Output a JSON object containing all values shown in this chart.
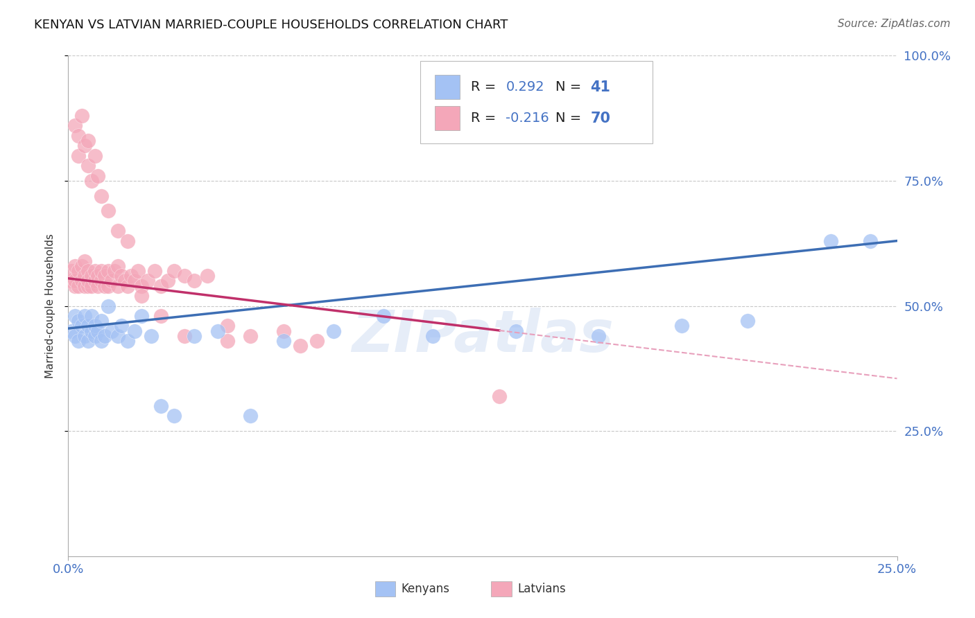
{
  "title": "KENYAN VS LATVIAN MARRIED-COUPLE HOUSEHOLDS CORRELATION CHART",
  "source": "Source: ZipAtlas.com",
  "ylabel": "Married-couple Households",
  "xlim": [
    0.0,
    0.25
  ],
  "ylim": [
    0.0,
    1.0
  ],
  "kenyan_R": "0.292",
  "kenyan_N": "41",
  "latvian_R": "-0.216",
  "latvian_N": "70",
  "kenyan_fill": "#a4c2f4",
  "latvian_fill": "#f4a7b9",
  "kenyan_line": "#3d6eb4",
  "latvian_line": "#c0306a",
  "latvian_dash": "#e8a0bc",
  "accent_color": "#4472c4",
  "watermark": "ZIPatlas",
  "bg": "#ffffff",
  "grid_color": "#c8c8c8",
  "kenyan_x": [
    0.001,
    0.002,
    0.002,
    0.003,
    0.003,
    0.004,
    0.005,
    0.005,
    0.006,
    0.006,
    0.007,
    0.007,
    0.008,
    0.008,
    0.009,
    0.01,
    0.01,
    0.011,
    0.012,
    0.013,
    0.015,
    0.016,
    0.018,
    0.02,
    0.022,
    0.025,
    0.028,
    0.032,
    0.038,
    0.045,
    0.055,
    0.065,
    0.08,
    0.095,
    0.11,
    0.135,
    0.16,
    0.185,
    0.205,
    0.23,
    0.242
  ],
  "kenyan_y": [
    0.45,
    0.44,
    0.48,
    0.43,
    0.47,
    0.46,
    0.44,
    0.48,
    0.43,
    0.46,
    0.45,
    0.48,
    0.44,
    0.46,
    0.45,
    0.43,
    0.47,
    0.44,
    0.5,
    0.45,
    0.44,
    0.46,
    0.43,
    0.45,
    0.48,
    0.44,
    0.3,
    0.28,
    0.44,
    0.45,
    0.28,
    0.43,
    0.45,
    0.48,
    0.44,
    0.45,
    0.44,
    0.46,
    0.47,
    0.63,
    0.63
  ],
  "latvian_x": [
    0.001,
    0.001,
    0.002,
    0.002,
    0.002,
    0.003,
    0.003,
    0.004,
    0.004,
    0.005,
    0.005,
    0.005,
    0.006,
    0.006,
    0.006,
    0.007,
    0.007,
    0.008,
    0.008,
    0.009,
    0.009,
    0.01,
    0.01,
    0.011,
    0.011,
    0.012,
    0.012,
    0.013,
    0.014,
    0.015,
    0.015,
    0.016,
    0.017,
    0.018,
    0.019,
    0.02,
    0.021,
    0.022,
    0.024,
    0.026,
    0.028,
    0.03,
    0.032,
    0.035,
    0.038,
    0.042,
    0.048,
    0.055,
    0.065,
    0.075,
    0.002,
    0.003,
    0.003,
    0.004,
    0.005,
    0.006,
    0.006,
    0.007,
    0.008,
    0.009,
    0.01,
    0.012,
    0.015,
    0.018,
    0.022,
    0.028,
    0.035,
    0.048,
    0.07,
    0.13
  ],
  "latvian_y": [
    0.55,
    0.57,
    0.54,
    0.58,
    0.55,
    0.54,
    0.57,
    0.55,
    0.58,
    0.54,
    0.56,
    0.59,
    0.54,
    0.57,
    0.55,
    0.54,
    0.56,
    0.55,
    0.57,
    0.54,
    0.56,
    0.55,
    0.57,
    0.54,
    0.56,
    0.57,
    0.54,
    0.55,
    0.57,
    0.54,
    0.58,
    0.56,
    0.55,
    0.54,
    0.56,
    0.55,
    0.57,
    0.54,
    0.55,
    0.57,
    0.54,
    0.55,
    0.57,
    0.56,
    0.55,
    0.56,
    0.46,
    0.44,
    0.45,
    0.43,
    0.86,
    0.84,
    0.8,
    0.88,
    0.82,
    0.83,
    0.78,
    0.75,
    0.8,
    0.76,
    0.72,
    0.69,
    0.65,
    0.63,
    0.52,
    0.48,
    0.44,
    0.43,
    0.42,
    0.32
  ]
}
